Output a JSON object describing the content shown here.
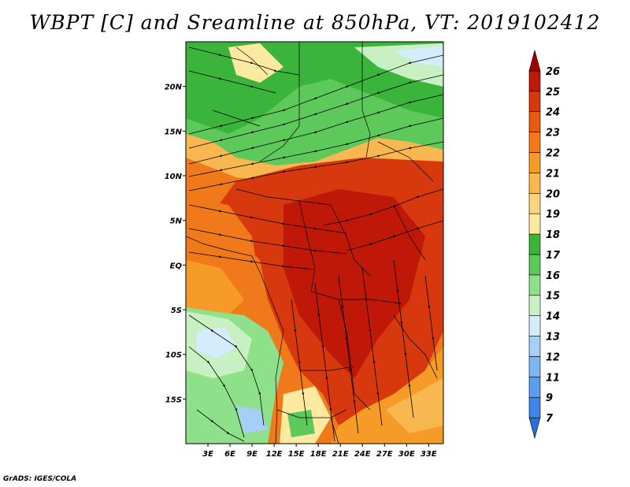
{
  "title": "WBPT [C] and Sreamline at 850hPa, VT: 2019102412",
  "credit": "GrADS: IGES/COLA",
  "map": {
    "lon_range": [
      0,
      35
    ],
    "lat_range": [
      -20,
      25
    ],
    "lat_ticks": [
      {
        "value": 20,
        "label": "20N"
      },
      {
        "value": 15,
        "label": "15N"
      },
      {
        "value": 10,
        "label": "10N"
      },
      {
        "value": 5,
        "label": "5N"
      },
      {
        "value": 0,
        "label": "EQ"
      },
      {
        "value": -5,
        "label": "5S"
      },
      {
        "value": -10,
        "label": "10S"
      },
      {
        "value": -15,
        "label": "15S"
      }
    ],
    "lon_ticks": [
      {
        "value": 3,
        "label": "3E"
      },
      {
        "value": 6,
        "label": "6E"
      },
      {
        "value": 9,
        "label": "9E"
      },
      {
        "value": 12,
        "label": "12E"
      },
      {
        "value": 15,
        "label": "15E"
      },
      {
        "value": 18,
        "label": "18E"
      },
      {
        "value": 21,
        "label": "21E"
      },
      {
        "value": 24,
        "label": "24E"
      },
      {
        "value": 27,
        "label": "27E"
      },
      {
        "value": 30,
        "label": "30E"
      },
      {
        "value": 33,
        "label": "33E"
      }
    ]
  },
  "colorbar": {
    "levels": [
      "7",
      "9",
      "11",
      "12",
      "13",
      "14",
      "15",
      "16",
      "17",
      "18",
      "19",
      "20",
      "21",
      "22",
      "23",
      "24",
      "25",
      "26"
    ],
    "colors": [
      "#2a6fd6",
      "#3c86e6",
      "#5a9cf0",
      "#7eb5f5",
      "#a6cef8",
      "#d4ecfb",
      "#c9f0c2",
      "#8ee08a",
      "#5dc95a",
      "#3ab43a",
      "#fde9a0",
      "#fdd47e",
      "#f9b84f",
      "#f69a28",
      "#f07a1a",
      "#e85a12",
      "#d8380e",
      "#c01808",
      "#a00000"
    ]
  }
}
